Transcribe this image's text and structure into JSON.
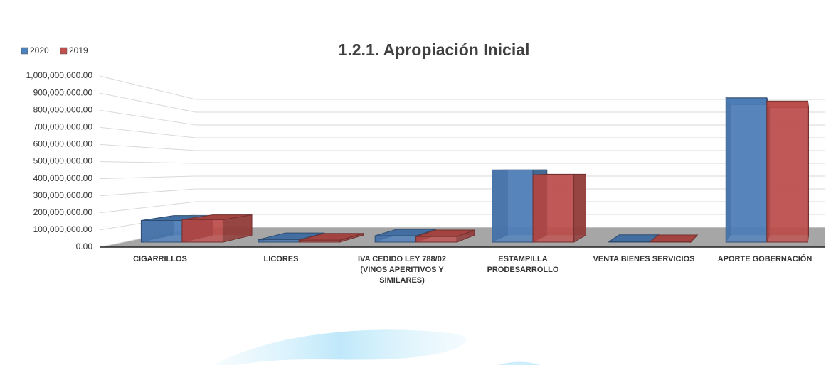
{
  "chart_data": {
    "type": "bar3d",
    "title": "1.2.1. Apropiación Inicial",
    "categories": [
      "CIGARRILLOS",
      "LICORES",
      "IVA CEDIDO LEY 788/02 (VINOS APERITIVOS Y SIMILARES)",
      "ESTAMPILLA PRODESARROLLO",
      "VENTA BIENES SERVICIOS",
      "APORTE GOBERNACIÓN"
    ],
    "series": [
      {
        "name": "2020",
        "color": "#4f81bd",
        "values": [
          135000000,
          15000000,
          40000000,
          450000000,
          2000000,
          900000000
        ]
      },
      {
        "name": "2019",
        "color": "#c0504d",
        "values": [
          140000000,
          12000000,
          35000000,
          420000000,
          1000000,
          880000000
        ]
      }
    ],
    "ylim": [
      0,
      1000000000
    ],
    "yticks": [
      {
        "value": 0,
        "label": "0.00"
      },
      {
        "value": 100000000,
        "label": "100,000,000.00"
      },
      {
        "value": 200000000,
        "label": "200,000,000.00"
      },
      {
        "value": 300000000,
        "label": "300,000,000.00"
      },
      {
        "value": 400000000,
        "label": "400,000,000.00"
      },
      {
        "value": 500000000,
        "label": "500,000,000.00"
      },
      {
        "value": 600000000,
        "label": "600,000,000.00"
      },
      {
        "value": 700000000,
        "label": "700,000,000.00"
      },
      {
        "value": 800000000,
        "label": "800,000,000.00"
      },
      {
        "value": 900000000,
        "label": "900,000,000.00"
      },
      {
        "value": 1000000000,
        "label": "1,000,000,000.00"
      }
    ],
    "grid": true,
    "legend": "top-left"
  }
}
